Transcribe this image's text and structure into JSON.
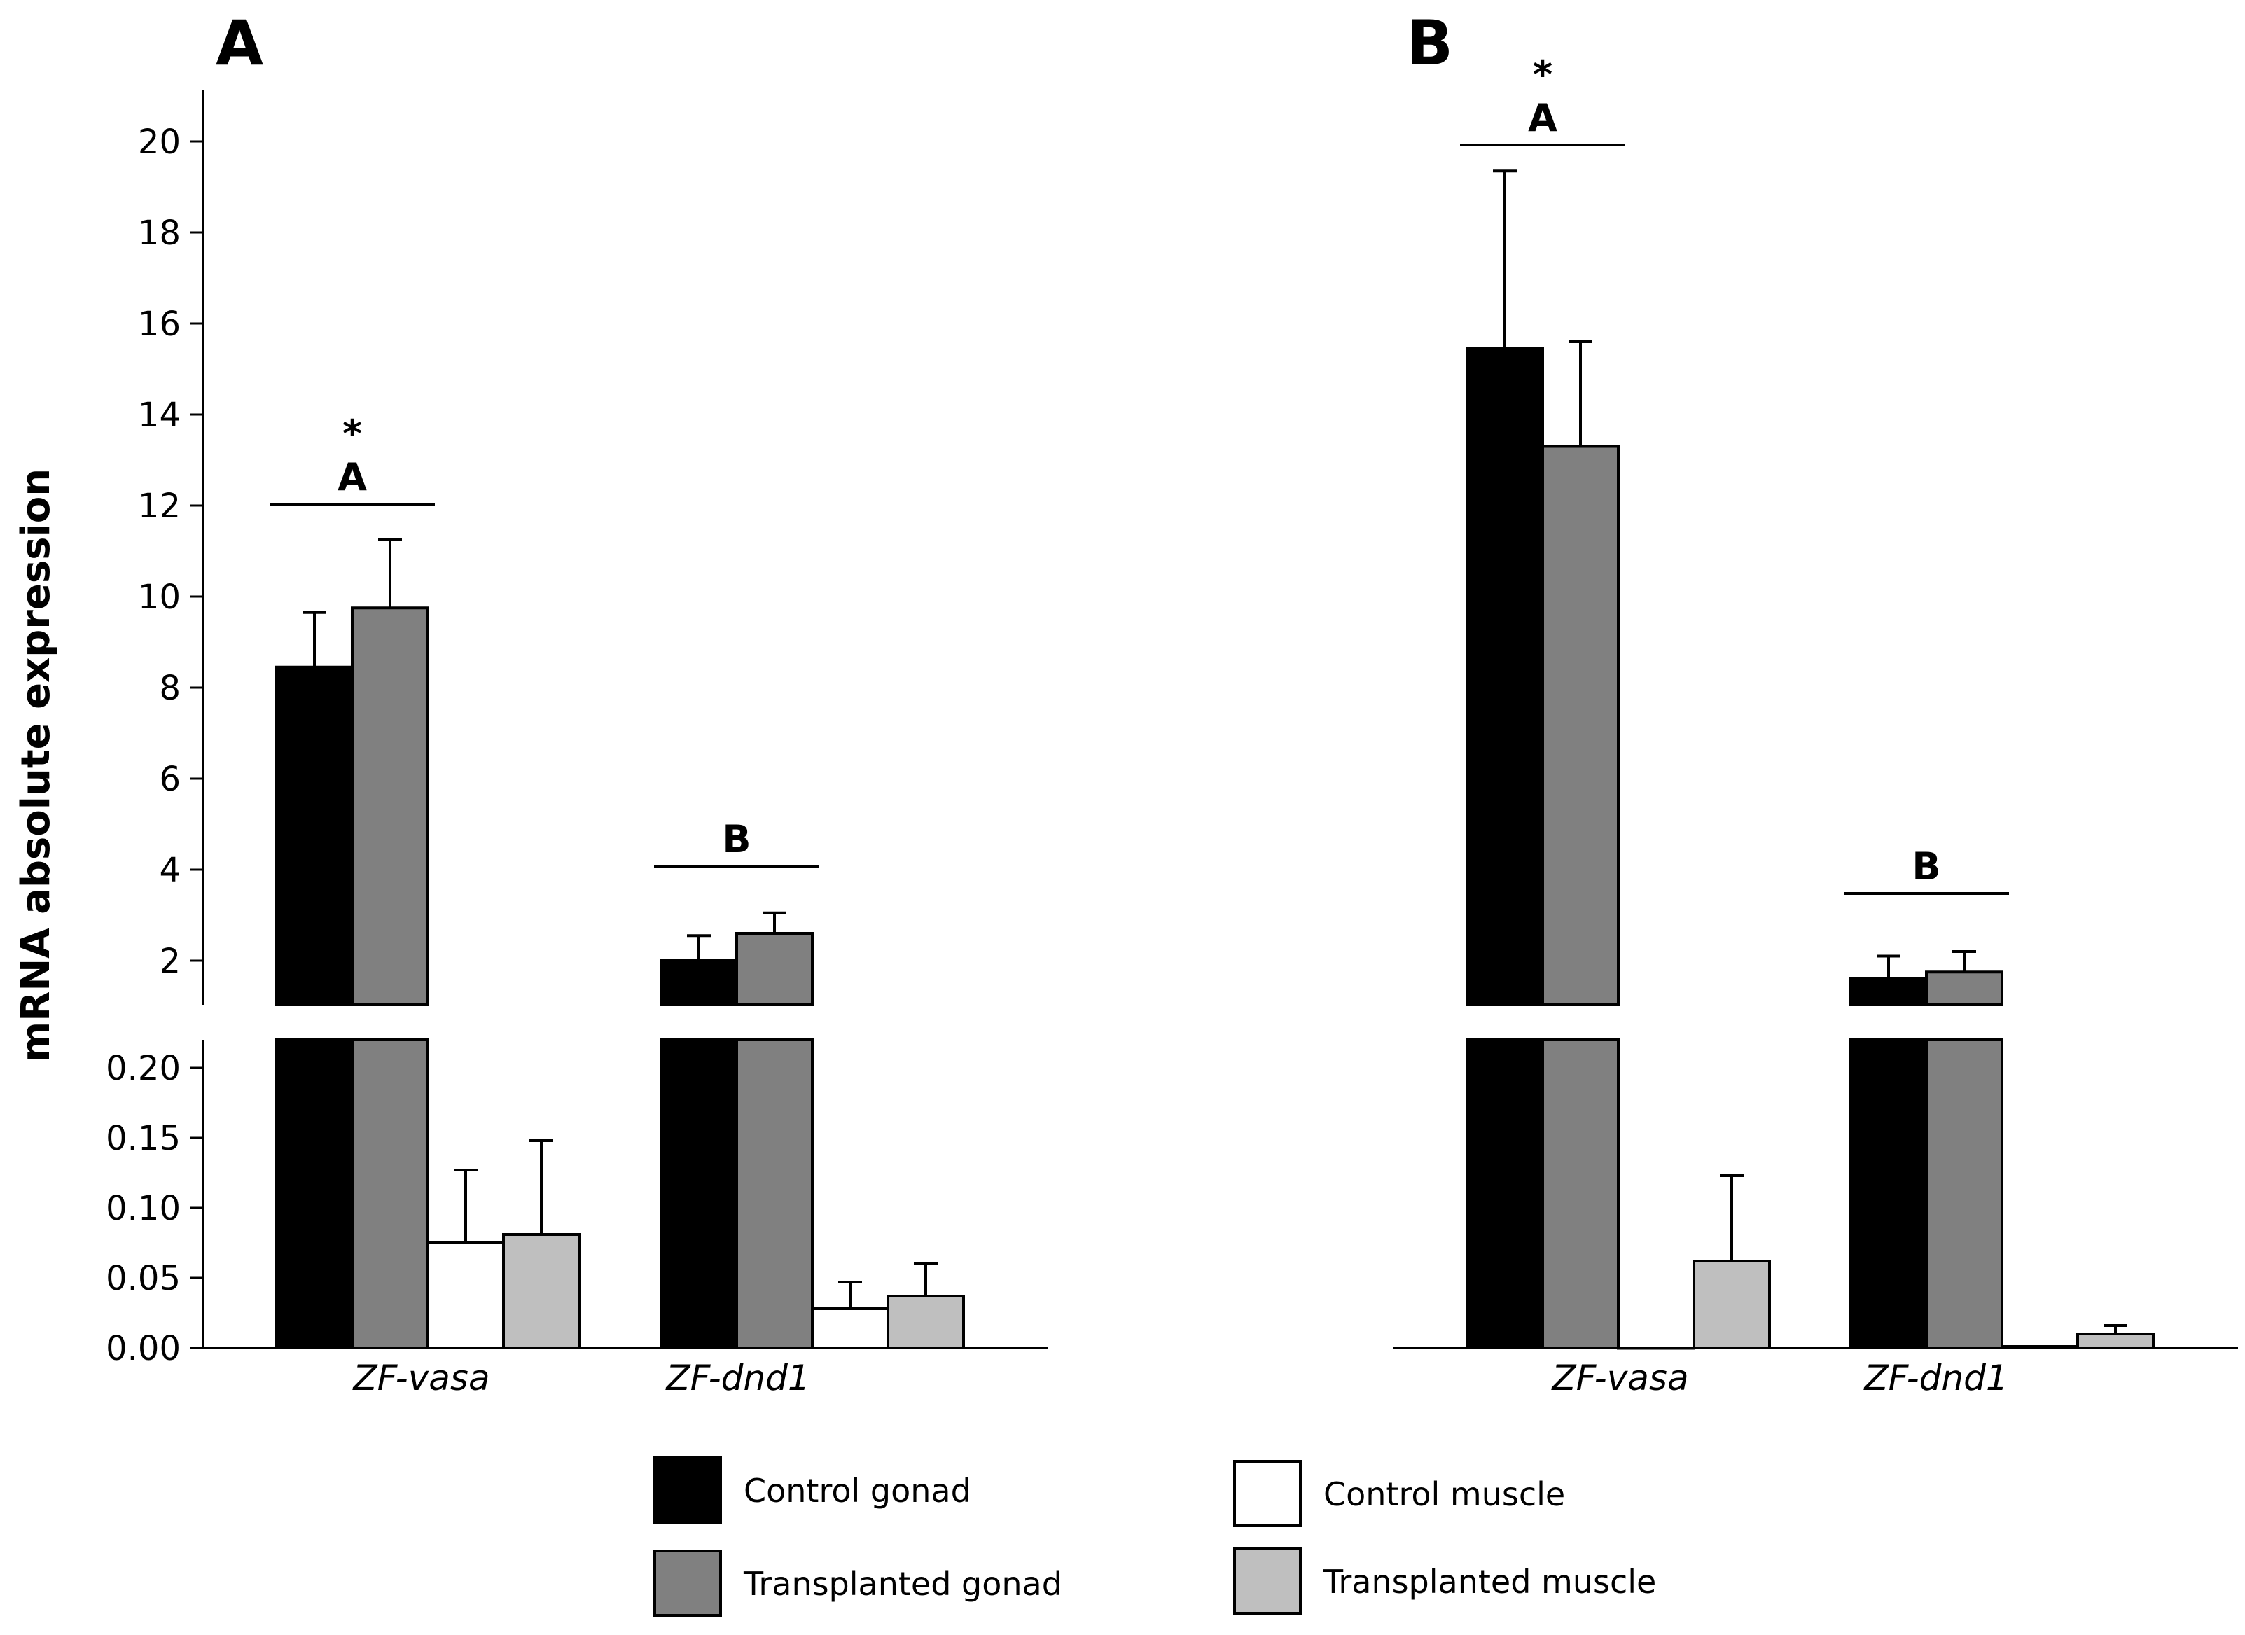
{
  "chart_data": {
    "type": "bar",
    "ylabel": "mRNA absolute expression",
    "categories": [
      "ZF-vasa",
      "ZF-dnd1"
    ],
    "series_names": [
      "Control gonad",
      "Transplanted gonad",
      "Control muscle",
      "Transplanted muscle"
    ],
    "series_colors": [
      "#000000",
      "#808080",
      "#ffffff",
      "#bfbfbf"
    ],
    "y_axis_break": true,
    "upper_axis": {
      "ylim": [
        1,
        21.2
      ],
      "ticks": [
        "2",
        "4",
        "6",
        "8",
        "10",
        "12",
        "14",
        "16",
        "18",
        "20"
      ]
    },
    "lower_axis": {
      "ylim": [
        0,
        0.22
      ],
      "ticks": [
        "0.00",
        "0.05",
        "0.10",
        "0.15",
        "0.20"
      ]
    },
    "panels": [
      {
        "label": "A",
        "groups": [
          {
            "category": "ZF-vasa",
            "letter": "A",
            "star": "*",
            "values": [
              8.45,
              9.75,
              0.075,
              0.081
            ],
            "errors": [
              1.2,
              1.5,
              0.052,
              0.067
            ]
          },
          {
            "category": "ZF-dnd1",
            "letter": "B",
            "star": "",
            "values": [
              2.0,
              2.6,
              0.028,
              0.037
            ],
            "errors": [
              0.55,
              0.45,
              0.019,
              0.023
            ]
          }
        ]
      },
      {
        "label": "B",
        "groups": [
          {
            "category": "ZF-vasa",
            "letter": "A",
            "star": "*",
            "values": [
              15.45,
              13.3,
              0.0,
              0.062
            ],
            "errors": [
              3.9,
              2.3,
              0.0,
              0.061
            ]
          },
          {
            "category": "ZF-dnd1",
            "letter": "B",
            "star": "",
            "values": [
              1.6,
              1.75,
              0.001,
              0.01
            ],
            "errors": [
              0.5,
              0.45,
              0.0,
              0.006
            ]
          }
        ]
      }
    ]
  },
  "legend": {
    "items": [
      {
        "label": "Control gonad",
        "color": "#000000"
      },
      {
        "label": "Transplanted gonad",
        "color": "#808080"
      },
      {
        "label": "Control muscle",
        "color": "#ffffff"
      },
      {
        "label": "Transplanted muscle",
        "color": "#bfbfbf"
      }
    ]
  }
}
